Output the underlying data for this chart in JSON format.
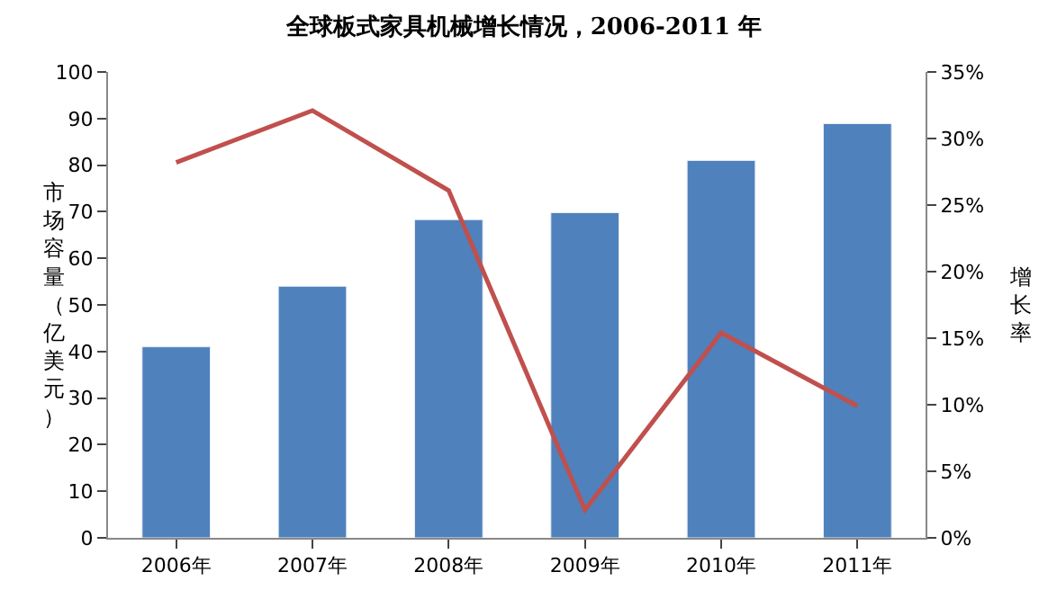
{
  "chart_data": {
    "type": "bar",
    "title": "全球板式家具机械增长情况，2006-2011 年",
    "categories": [
      "2006年",
      "2007年",
      "2008年",
      "2009年",
      "2010年",
      "2011年"
    ],
    "series": [
      {
        "color": "#4f81bd",
        "values": [
          41,
          54,
          68.3,
          69.8,
          81,
          88.9
        ]
      },
      {
        "type": "line",
        "axis": "y2",
        "color": "#c0504d",
        "values": [
          28.2,
          32.1,
          26.1,
          2.1,
          15.4,
          9.9
        ]
      }
    ],
    "ylabel": "市场容量（亿美元）",
    "y2label": "增长率",
    "ylim": [
      0,
      100
    ],
    "yticks": [
      0,
      10,
      20,
      30,
      40,
      50,
      60,
      70,
      80,
      90,
      100
    ],
    "y2lim": [
      0,
      35
    ],
    "y2ticks": [
      {
        "value": 0,
        "label": "0%"
      },
      {
        "value": 5,
        "label": "5%"
      },
      {
        "value": 10,
        "label": "10%"
      },
      {
        "value": 15,
        "label": "15%"
      },
      {
        "value": 20,
        "label": "20%"
      },
      {
        "value": 25,
        "label": "25%"
      },
      {
        "value": 30,
        "label": "30%"
      },
      {
        "value": 35,
        "label": "35%"
      }
    ],
    "marker": "none",
    "line_style": "solid"
  }
}
